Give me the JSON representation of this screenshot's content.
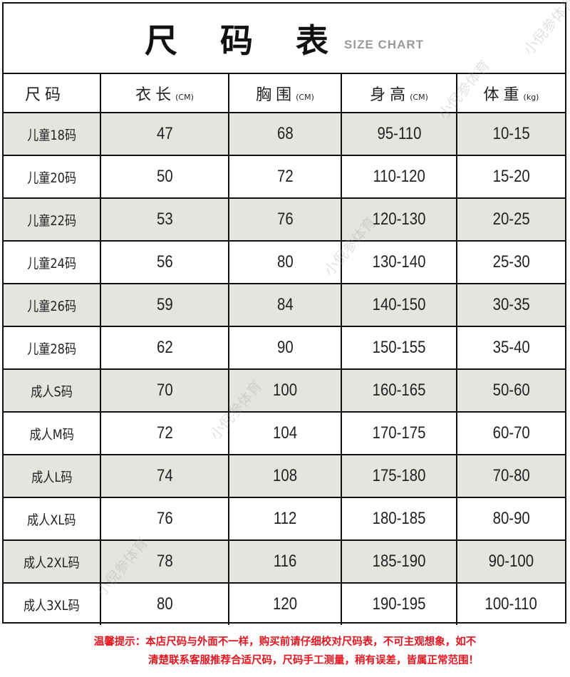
{
  "title": "尺 码 表",
  "subtitle": "SIZE CHART",
  "headers": [
    {
      "label": "尺码",
      "unit": ""
    },
    {
      "label": "衣长",
      "unit": "(CM)"
    },
    {
      "label": "胸围",
      "unit": "(CM)"
    },
    {
      "label": "身高",
      "unit": "(CM)"
    },
    {
      "label": "体重",
      "unit": "(kg)"
    }
  ],
  "rows": [
    [
      "儿童18码",
      "47",
      "68",
      "95-110",
      "10-15"
    ],
    [
      "儿童20码",
      "50",
      "72",
      "110-120",
      "15-20"
    ],
    [
      "儿童22码",
      "53",
      "76",
      "120-130",
      "20-25"
    ],
    [
      "儿童24码",
      "56",
      "80",
      "130-140",
      "25-30"
    ],
    [
      "儿童26码",
      "59",
      "84",
      "140-150",
      "30-35"
    ],
    [
      "儿童28码",
      "62",
      "90",
      "150-155",
      "35-40"
    ],
    [
      "成人S码",
      "70",
      "100",
      "160-165",
      "50-60"
    ],
    [
      "成人M码",
      "72",
      "104",
      "170-175",
      "60-70"
    ],
    [
      "成人L码",
      "74",
      "108",
      "175-180",
      "70-80"
    ],
    [
      "成人XL码",
      "76",
      "112",
      "180-185",
      "80-90"
    ],
    [
      "成人2XL码",
      "78",
      "116",
      "185-190",
      "90-100"
    ],
    [
      "成人3XL码",
      "80",
      "120",
      "190-195",
      "100-110"
    ]
  ],
  "note": [
    "温馨提示：本店尺码与外面不一样，购买前请仔细校对尺码表，不可主观想象，如不",
    "清楚联系客服推荐合适尺码，尺码手工测量，稍有误差，皆属正常范围！"
  ],
  "watermark": "小倪参体育",
  "colors": {
    "shade": "#e4e4e0",
    "note": "#e8141e",
    "subtitle": "#9a9a9a"
  }
}
